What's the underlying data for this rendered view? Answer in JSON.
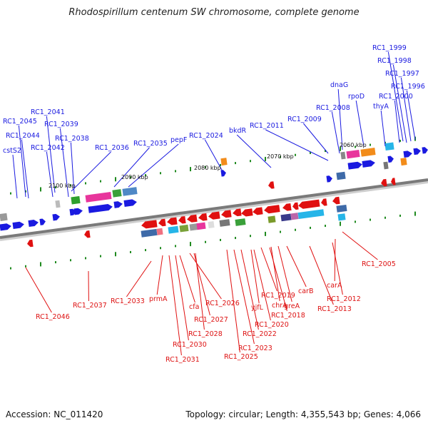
{
  "title": "Rhodospirillum centenum SW chromosome, complete genome",
  "footer": {
    "accession": "Accession: NC_011420",
    "summary": "Topology: circular; Length: 4,355,543 bp; Genes: 4,066"
  },
  "colors": {
    "forward_strand": "#1a1ae0",
    "reverse_strand": "#e01010",
    "backbone": "#7a7a7a",
    "tick": "#1f8a1f"
  },
  "scale_labels": [
    "2100 kbp",
    "2090 kbp",
    "2080 kbp",
    "2070 kbp",
    "2060 kbp"
  ],
  "top_labels": [
    "RC1_1999",
    "RC1_1998",
    "RC1_1997",
    "RC1_1996",
    "RC1_2000",
    "dnaG",
    "rpoD",
    "thyA",
    "RC1_2008",
    "RC1_2009",
    "RC1_2011",
    "bkdR",
    "RC1_2024",
    "pepF",
    "RC1_2035",
    "RC1_2036",
    "RC1_2038",
    "RC1_2039",
    "RC1_2041",
    "RC1_2042",
    "RC1_2044",
    "RC1_2045",
    "cstS2"
  ],
  "bottom_labels": [
    "RC1_2046",
    "RC1_2037",
    "RC1_2033",
    "prmA",
    "cfa",
    "RC1_2026",
    "RC1_2027",
    "RC1_2028",
    "RC1_2030",
    "RC1_2031",
    "RC1_2025",
    "RC1_2023",
    "RC1_2022",
    "yjfL",
    "RC1_2020",
    "RC1_2019",
    "RC1_2018",
    "chrA",
    "greA",
    "carB",
    "RC1_2013",
    "RC1_2012",
    "carA",
    "RC1_2005"
  ]
}
